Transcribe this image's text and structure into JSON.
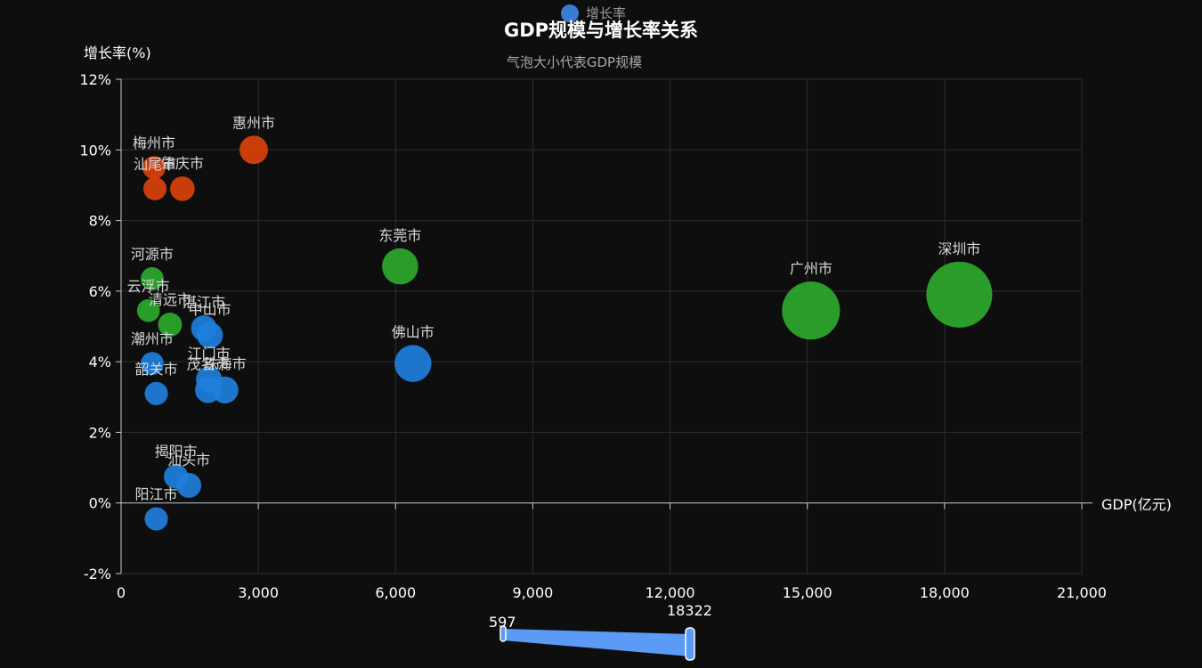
{
  "title": "GDP规模与增长率关系",
  "subtitle": "气泡大小代表GDP规模",
  "legend": {
    "label": "增长率",
    "color": "#3a7bd5"
  },
  "colors": {
    "green": "#2ca82c",
    "orange": "#d9410b",
    "blue": "#1e7fdc",
    "background": "#0e0e0e",
    "grid": "#2e2e2e",
    "axis": "#c8c8d8"
  },
  "visual_map": {
    "min_label": "597",
    "max_label": "18322",
    "color": "#5b9bf5"
  },
  "chart_data": {
    "type": "scatter",
    "title": "GDP规模与增长率关系",
    "subtitle": "气泡大小代表GDP规模",
    "xlabel": "GDP(亿元)",
    "ylabel": "增长率(%)",
    "xlim": [
      0,
      21000
    ],
    "ylim": [
      -2,
      12
    ],
    "xticks": [
      "0",
      "3,000",
      "6,000",
      "9,000",
      "12,000",
      "15,000",
      "18,000",
      "21,000"
    ],
    "yticks": [
      "-2%",
      "0%",
      "2%",
      "4%",
      "6%",
      "8%",
      "10%",
      "12%"
    ],
    "grid": true,
    "points": [
      {
        "name": "深圳市",
        "x": 18322,
        "y": 5.9,
        "color": "green"
      },
      {
        "name": "广州市",
        "x": 15080,
        "y": 5.45,
        "color": "green"
      },
      {
        "name": "东莞市",
        "x": 6100,
        "y": 6.7,
        "color": "green"
      },
      {
        "name": "佛山市",
        "x": 6380,
        "y": 3.95,
        "color": "blue"
      },
      {
        "name": "惠州市",
        "x": 2900,
        "y": 10.0,
        "color": "orange"
      },
      {
        "name": "梅州市",
        "x": 720,
        "y": 9.5,
        "color": "orange"
      },
      {
        "name": "汕尾市",
        "x": 740,
        "y": 8.9,
        "color": "orange"
      },
      {
        "name": "肇庆市",
        "x": 1340,
        "y": 8.9,
        "color": "orange"
      },
      {
        "name": "河源市",
        "x": 680,
        "y": 6.35,
        "color": "green"
      },
      {
        "name": "云浮市",
        "x": 597,
        "y": 5.45,
        "color": "green"
      },
      {
        "name": "清远市",
        "x": 1070,
        "y": 5.05,
        "color": "green"
      },
      {
        "name": "湛江市",
        "x": 1810,
        "y": 4.95,
        "color": "blue"
      },
      {
        "name": "中山市",
        "x": 1940,
        "y": 4.75,
        "color": "blue"
      },
      {
        "name": "潮州市",
        "x": 680,
        "y": 3.95,
        "color": "blue"
      },
      {
        "name": "江门市",
        "x": 1920,
        "y": 3.5,
        "color": "blue"
      },
      {
        "name": "茂名市",
        "x": 1900,
        "y": 3.2,
        "color": "blue"
      },
      {
        "name": "珠海市",
        "x": 2270,
        "y": 3.2,
        "color": "blue"
      },
      {
        "name": "韶关市",
        "x": 770,
        "y": 3.1,
        "color": "blue"
      },
      {
        "name": "揭阳市",
        "x": 1200,
        "y": 0.75,
        "color": "blue"
      },
      {
        "name": "汕头市",
        "x": 1480,
        "y": 0.5,
        "color": "blue"
      },
      {
        "name": "阳江市",
        "x": 770,
        "y": -0.45,
        "color": "blue"
      }
    ]
  }
}
